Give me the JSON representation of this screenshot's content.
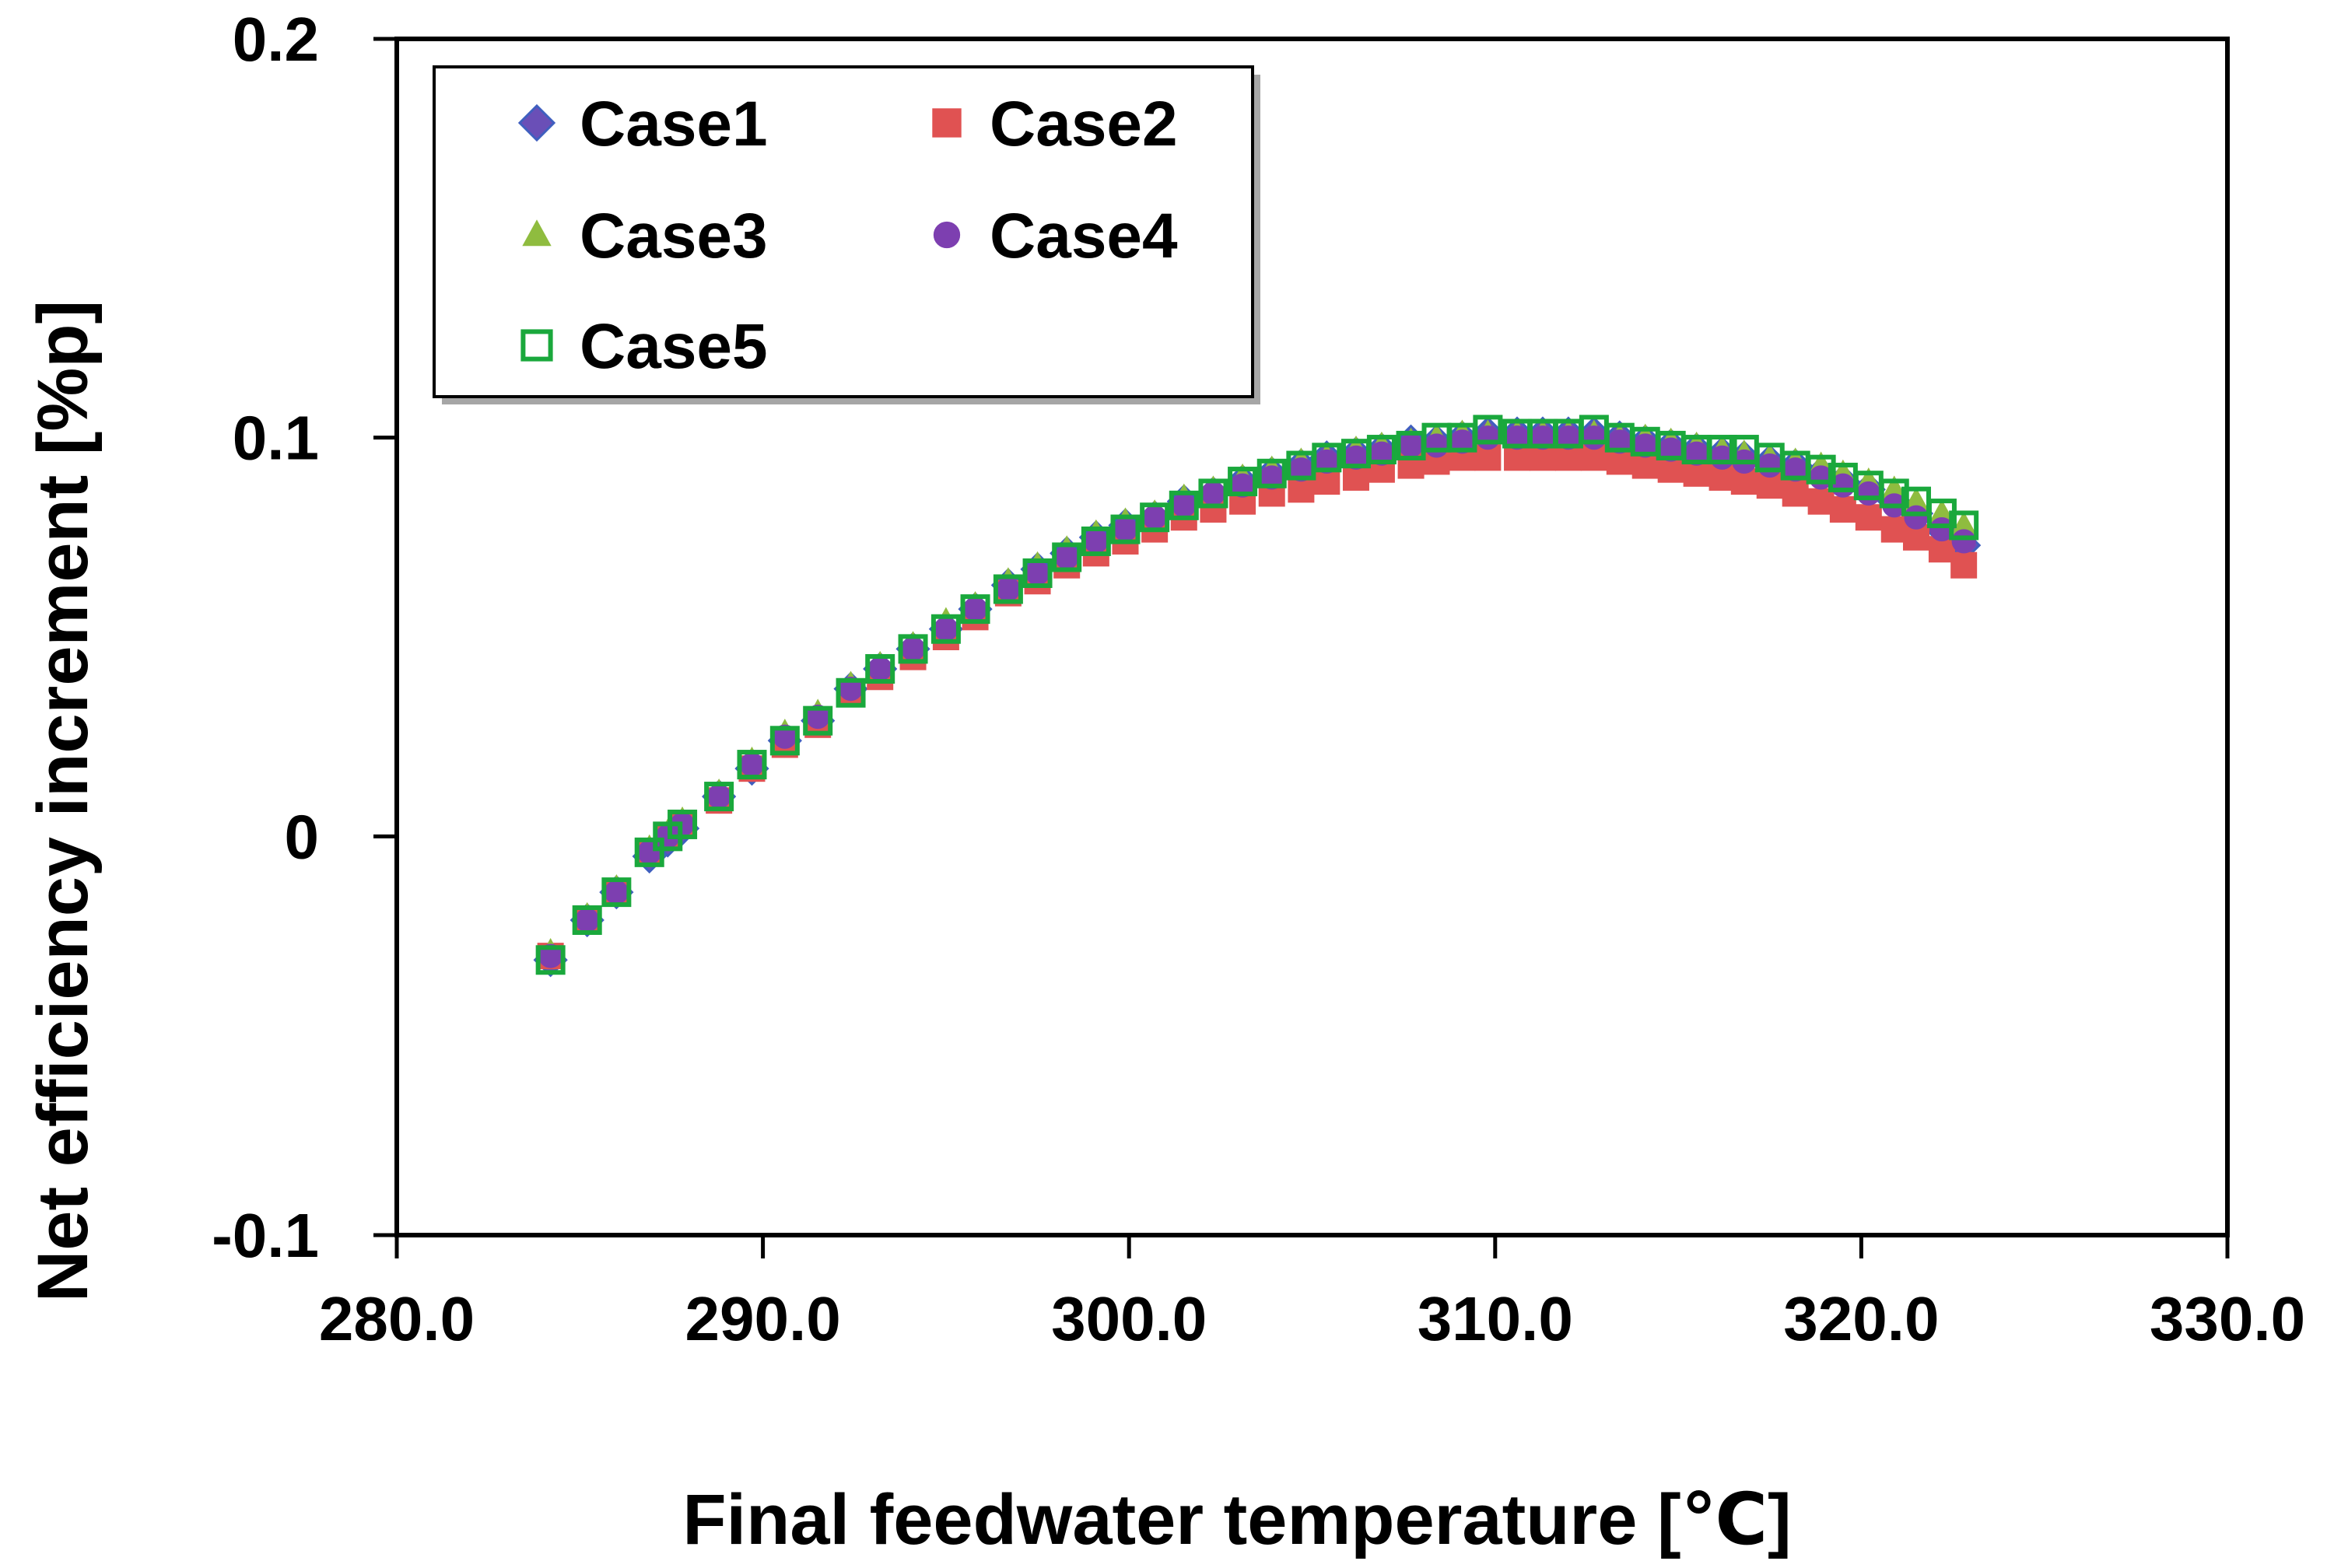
{
  "chart_data": {
    "type": "scatter",
    "xlabel": "Final feedwater temperature [℃]",
    "ylabel": "Net efficiency increment  [%p]",
    "xlim": [
      280.0,
      330.0
    ],
    "ylim": [
      -0.1,
      0.2
    ],
    "x_ticks": [
      "280.0",
      "290.0",
      "300.0",
      "310.0",
      "320.0",
      "330.0"
    ],
    "y_ticks": [
      "-0.1",
      "0",
      "0.1",
      "0.2"
    ],
    "grid": false,
    "legend_position": "top-left",
    "series": [
      {
        "name": "Case1",
        "marker": "diamond",
        "color": "#6a4fb7",
        "x": [
          284.2,
          285.2,
          286.0,
          286.9,
          287.4,
          287.8,
          288.8,
          289.7,
          290.6,
          291.5,
          292.4,
          293.2,
          294.1,
          295.0,
          295.8,
          296.7,
          297.5,
          298.3,
          299.1,
          299.9,
          300.7,
          301.5,
          302.3,
          303.1,
          303.9,
          304.7,
          305.4,
          306.2,
          306.9,
          307.7,
          308.4,
          309.1,
          309.8,
          310.6,
          311.3,
          312.0,
          312.7,
          313.4,
          314.1,
          314.8,
          315.5,
          316.2,
          316.8,
          317.5,
          318.2,
          318.9,
          319.5,
          320.2,
          320.9,
          321.5,
          322.2,
          322.8
        ],
        "y": [
          -0.031,
          -0.021,
          -0.014,
          -0.005,
          -0.001,
          0.002,
          0.01,
          0.017,
          0.024,
          0.029,
          0.037,
          0.042,
          0.047,
          0.052,
          0.057,
          0.063,
          0.067,
          0.071,
          0.075,
          0.078,
          0.08,
          0.084,
          0.086,
          0.089,
          0.091,
          0.093,
          0.095,
          0.096,
          0.097,
          0.099,
          0.099,
          0.1,
          0.101,
          0.101,
          0.101,
          0.101,
          0.101,
          0.1,
          0.099,
          0.098,
          0.097,
          0.096,
          0.095,
          0.094,
          0.093,
          0.091,
          0.089,
          0.087,
          0.084,
          0.081,
          0.077,
          0.073
        ]
      },
      {
        "name": "Case2",
        "marker": "square",
        "color": "#e05252",
        "x": [
          284.2,
          285.2,
          286.0,
          286.9,
          287.4,
          287.8,
          288.8,
          289.7,
          290.6,
          291.5,
          292.4,
          293.2,
          294.1,
          295.0,
          295.8,
          296.7,
          297.5,
          298.3,
          299.1,
          299.9,
          300.7,
          301.5,
          302.3,
          303.1,
          303.9,
          304.7,
          305.4,
          306.2,
          306.9,
          307.7,
          308.4,
          309.1,
          309.8,
          310.6,
          311.3,
          312.0,
          312.7,
          313.4,
          314.1,
          314.8,
          315.5,
          316.2,
          316.8,
          317.5,
          318.2,
          318.9,
          319.5,
          320.2,
          320.9,
          321.5,
          322.2,
          322.8
        ],
        "y": [
          -0.03,
          -0.021,
          -0.014,
          -0.004,
          0.0,
          0.003,
          0.009,
          0.017,
          0.023,
          0.028,
          0.036,
          0.04,
          0.045,
          0.05,
          0.055,
          0.061,
          0.064,
          0.068,
          0.071,
          0.074,
          0.077,
          0.08,
          0.082,
          0.084,
          0.086,
          0.087,
          0.089,
          0.09,
          0.092,
          0.093,
          0.094,
          0.095,
          0.095,
          0.095,
          0.095,
          0.095,
          0.095,
          0.094,
          0.093,
          0.092,
          0.091,
          0.09,
          0.089,
          0.088,
          0.086,
          0.084,
          0.082,
          0.08,
          0.077,
          0.075,
          0.072,
          0.068
        ]
      },
      {
        "name": "Case3",
        "marker": "triangle",
        "color": "#8fbc3f",
        "x": [
          284.2,
          285.2,
          286.0,
          286.9,
          287.4,
          287.8,
          288.8,
          289.7,
          290.6,
          291.5,
          292.4,
          293.2,
          294.1,
          295.0,
          295.8,
          296.7,
          297.5,
          298.3,
          299.1,
          299.9,
          300.7,
          301.5,
          302.3,
          303.1,
          303.9,
          304.7,
          305.4,
          306.2,
          306.9,
          307.7,
          308.4,
          309.1,
          309.8,
          310.6,
          311.3,
          312.0,
          312.7,
          313.4,
          314.1,
          314.8,
          315.5,
          316.2,
          316.8,
          317.5,
          318.2,
          318.9,
          319.5,
          320.2,
          320.9,
          321.5,
          322.2,
          322.8
        ],
        "y": [
          -0.029,
          -0.02,
          -0.013,
          -0.003,
          0.001,
          0.004,
          0.011,
          0.019,
          0.026,
          0.031,
          0.038,
          0.043,
          0.048,
          0.054,
          0.058,
          0.064,
          0.068,
          0.072,
          0.076,
          0.079,
          0.081,
          0.085,
          0.087,
          0.09,
          0.092,
          0.094,
          0.095,
          0.097,
          0.098,
          0.099,
          0.1,
          0.101,
          0.101,
          0.101,
          0.101,
          0.101,
          0.101,
          0.1,
          0.1,
          0.099,
          0.098,
          0.097,
          0.096,
          0.095,
          0.094,
          0.093,
          0.091,
          0.089,
          0.087,
          0.084,
          0.081,
          0.078
        ]
      },
      {
        "name": "Case4",
        "marker": "circle",
        "color": "#7d3fb0",
        "x": [
          284.2,
          285.2,
          286.0,
          286.9,
          287.4,
          287.8,
          288.8,
          289.7,
          290.6,
          291.5,
          292.4,
          293.2,
          294.1,
          295.0,
          295.8,
          296.7,
          297.5,
          298.3,
          299.1,
          299.9,
          300.7,
          301.5,
          302.3,
          303.1,
          303.9,
          304.7,
          305.4,
          306.2,
          306.9,
          307.7,
          308.4,
          309.1,
          309.8,
          310.6,
          311.3,
          312.0,
          312.7,
          313.4,
          314.1,
          314.8,
          315.5,
          316.2,
          316.8,
          317.5,
          318.2,
          318.9,
          319.5,
          320.2,
          320.9,
          321.5,
          322.2,
          322.8
        ],
        "y": [
          -0.03,
          -0.021,
          -0.014,
          -0.004,
          0.0,
          0.003,
          0.01,
          0.018,
          0.025,
          0.03,
          0.037,
          0.042,
          0.047,
          0.052,
          0.057,
          0.062,
          0.066,
          0.07,
          0.074,
          0.077,
          0.08,
          0.083,
          0.086,
          0.088,
          0.09,
          0.092,
          0.094,
          0.095,
          0.096,
          0.098,
          0.098,
          0.099,
          0.1,
          0.1,
          0.1,
          0.1,
          0.1,
          0.099,
          0.098,
          0.097,
          0.096,
          0.095,
          0.094,
          0.093,
          0.092,
          0.09,
          0.088,
          0.086,
          0.083,
          0.08,
          0.077,
          0.074
        ]
      },
      {
        "name": "Case5",
        "marker": "open-square",
        "color": "#1aa83c",
        "x": [
          284.2,
          285.2,
          286.0,
          286.9,
          287.4,
          287.8,
          288.8,
          289.7,
          290.6,
          291.5,
          292.4,
          293.2,
          294.1,
          295.0,
          295.8,
          296.7,
          297.5,
          298.3,
          299.1,
          299.9,
          300.7,
          301.5,
          302.3,
          303.1,
          303.9,
          304.7,
          305.4,
          306.2,
          306.9,
          307.7,
          308.4,
          309.1,
          309.8,
          310.6,
          311.3,
          312.0,
          312.7,
          313.4,
          314.1,
          314.8,
          315.5,
          316.2,
          316.8,
          317.5,
          318.2,
          318.9,
          319.5,
          320.2,
          320.9,
          321.5,
          322.2,
          322.8
        ],
        "y": [
          -0.031,
          -0.021,
          -0.014,
          -0.004,
          0.0,
          0.003,
          0.01,
          0.018,
          0.024,
          0.029,
          0.036,
          0.042,
          0.047,
          0.052,
          0.057,
          0.062,
          0.066,
          0.07,
          0.074,
          0.077,
          0.08,
          0.083,
          0.086,
          0.089,
          0.091,
          0.093,
          0.095,
          0.096,
          0.097,
          0.098,
          0.1,
          0.1,
          0.102,
          0.101,
          0.101,
          0.101,
          0.102,
          0.1,
          0.099,
          0.098,
          0.097,
          0.097,
          0.097,
          0.095,
          0.093,
          0.092,
          0.09,
          0.088,
          0.086,
          0.084,
          0.081,
          0.078
        ]
      }
    ]
  }
}
